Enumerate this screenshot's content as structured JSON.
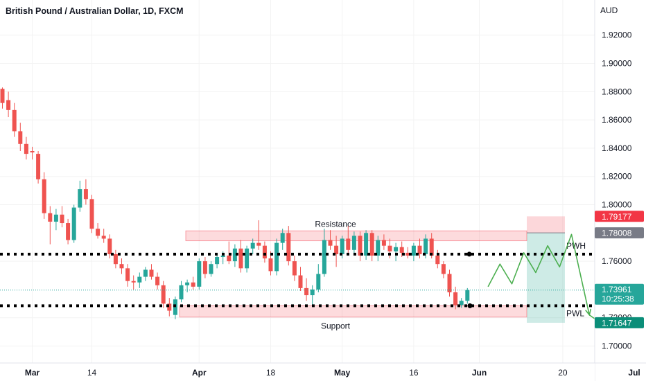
{
  "header": {
    "title": "British Pound / Australian Dollar, 1D, FXCM",
    "currency": "AUD"
  },
  "chart_data": {
    "type": "candlestick",
    "y_range": [
      1.688,
      1.938
    ],
    "y_ticks": [
      {
        "value": 1.92,
        "label": "1.92000"
      },
      {
        "value": 1.9,
        "label": "1.90000"
      },
      {
        "value": 1.88,
        "label": "1.88000"
      },
      {
        "value": 1.86,
        "label": "1.86000"
      },
      {
        "value": 1.84,
        "label": "1.84000"
      },
      {
        "value": 1.82,
        "label": "1.82000"
      },
      {
        "value": 1.8,
        "label": "1.80000"
      },
      {
        "value": 1.76,
        "label": "1.76000"
      },
      {
        "value": 1.72,
        "label": "1.72000"
      },
      {
        "value": 1.7,
        "label": "1.70000"
      }
    ],
    "x_ticks": [
      {
        "index": 5,
        "label": "Mar",
        "bold": true
      },
      {
        "index": 15,
        "label": "14",
        "bold": false
      },
      {
        "index": 33,
        "label": "Apr",
        "bold": true
      },
      {
        "index": 45,
        "label": "18",
        "bold": false
      },
      {
        "index": 57,
        "label": "May",
        "bold": true
      },
      {
        "index": 69,
        "label": "16",
        "bold": false
      },
      {
        "index": 80,
        "label": "Jun",
        "bold": true
      },
      {
        "index": 94,
        "label": "20",
        "bold": false
      },
      {
        "index": 106,
        "label": "Jul",
        "bold": true
      }
    ],
    "candles": [
      [
        1.882,
        1.883,
        1.868,
        1.872
      ],
      [
        1.874,
        1.88,
        1.862,
        1.867
      ],
      [
        1.867,
        1.872,
        1.848,
        1.852
      ],
      [
        1.852,
        1.858,
        1.838,
        1.843
      ],
      [
        1.843,
        1.848,
        1.832,
        1.836
      ],
      [
        1.838,
        1.841,
        1.832,
        1.837
      ],
      [
        1.836,
        1.838,
        1.815,
        1.818
      ],
      [
        1.818,
        1.823,
        1.79,
        1.794
      ],
      [
        1.794,
        1.799,
        1.772,
        1.788
      ],
      [
        1.788,
        1.797,
        1.782,
        1.793
      ],
      [
        1.793,
        1.799,
        1.784,
        1.787
      ],
      [
        1.787,
        1.79,
        1.772,
        1.775
      ],
      [
        1.775,
        1.8,
        1.773,
        1.798
      ],
      [
        1.798,
        1.817,
        1.795,
        1.811
      ],
      [
        1.811,
        1.818,
        1.8,
        1.804
      ],
      [
        1.804,
        1.807,
        1.78,
        1.783
      ],
      [
        1.783,
        1.787,
        1.776,
        1.778
      ],
      [
        1.778,
        1.783,
        1.773,
        1.776
      ],
      [
        1.776,
        1.779,
        1.762,
        1.765
      ],
      [
        1.765,
        1.768,
        1.755,
        1.758
      ],
      [
        1.758,
        1.762,
        1.751,
        1.755
      ],
      [
        1.755,
        1.758,
        1.742,
        1.746
      ],
      [
        1.746,
        1.75,
        1.74,
        1.745
      ],
      [
        1.745,
        1.752,
        1.741,
        1.749
      ],
      [
        1.749,
        1.756,
        1.746,
        1.754
      ],
      [
        1.754,
        1.758,
        1.747,
        1.749
      ],
      [
        1.749,
        1.752,
        1.74,
        1.743
      ],
      [
        1.743,
        1.746,
        1.727,
        1.73
      ],
      [
        1.73,
        1.734,
        1.721,
        1.725
      ],
      [
        1.722,
        1.735,
        1.719,
        1.733
      ],
      [
        1.733,
        1.746,
        1.731,
        1.743
      ],
      [
        1.743,
        1.747,
        1.738,
        1.745
      ],
      [
        1.745,
        1.749,
        1.74,
        1.742
      ],
      [
        1.742,
        1.762,
        1.74,
        1.76
      ],
      [
        1.76,
        1.763,
        1.748,
        1.751
      ],
      [
        1.751,
        1.76,
        1.749,
        1.758
      ],
      [
        1.758,
        1.765,
        1.755,
        1.763
      ],
      [
        1.763,
        1.767,
        1.758,
        1.764
      ],
      [
        1.764,
        1.774,
        1.758,
        1.76
      ],
      [
        1.76,
        1.772,
        1.756,
        1.769
      ],
      [
        1.769,
        1.775,
        1.752,
        1.755
      ],
      [
        1.755,
        1.771,
        1.752,
        1.769
      ],
      [
        1.769,
        1.776,
        1.765,
        1.773
      ],
      [
        1.773,
        1.789,
        1.768,
        1.771
      ],
      [
        1.771,
        1.774,
        1.759,
        1.762
      ],
      [
        1.762,
        1.767,
        1.75,
        1.753
      ],
      [
        1.753,
        1.776,
        1.75,
        1.773
      ],
      [
        1.773,
        1.783,
        1.768,
        1.78
      ],
      [
        1.78,
        1.785,
        1.757,
        1.76
      ],
      [
        1.76,
        1.764,
        1.746,
        1.75
      ],
      [
        1.75,
        1.756,
        1.739,
        1.741
      ],
      [
        1.741,
        1.748,
        1.732,
        1.736
      ],
      [
        1.736,
        1.743,
        1.729,
        1.74
      ],
      [
        1.74,
        1.758,
        1.738,
        1.751
      ],
      [
        1.751,
        1.783,
        1.749,
        1.775
      ],
      [
        1.775,
        1.782,
        1.768,
        1.771
      ],
      [
        1.771,
        1.778,
        1.756,
        1.765
      ],
      [
        1.765,
        1.778,
        1.762,
        1.776
      ],
      [
        1.776,
        1.785,
        1.766,
        1.768
      ],
      [
        1.768,
        1.781,
        1.765,
        1.778
      ],
      [
        1.778,
        1.781,
        1.76,
        1.764
      ],
      [
        1.764,
        1.782,
        1.761,
        1.78
      ],
      [
        1.78,
        1.782,
        1.76,
        1.764
      ],
      [
        1.764,
        1.778,
        1.76,
        1.775
      ],
      [
        1.775,
        1.779,
        1.768,
        1.771
      ],
      [
        1.771,
        1.776,
        1.762,
        1.767
      ],
      [
        1.767,
        1.773,
        1.76,
        1.77
      ],
      [
        1.77,
        1.774,
        1.763,
        1.766
      ],
      [
        1.766,
        1.77,
        1.762,
        1.764
      ],
      [
        1.764,
        1.773,
        1.76,
        1.771
      ],
      [
        1.771,
        1.776,
        1.762,
        1.765
      ],
      [
        1.765,
        1.779,
        1.762,
        1.776
      ],
      [
        1.776,
        1.78,
        1.762,
        1.764
      ],
      [
        1.764,
        1.768,
        1.755,
        1.758
      ],
      [
        1.758,
        1.76,
        1.748,
        1.751
      ],
      [
        1.751,
        1.754,
        1.735,
        1.738
      ],
      [
        1.738,
        1.742,
        1.726,
        1.729
      ],
      [
        1.729,
        1.734,
        1.727,
        1.732
      ],
      [
        1.732,
        1.741,
        1.73,
        1.7396
      ]
    ],
    "levels": [
      {
        "name": "PWH",
        "value": 1.765
      },
      {
        "name": "PWL",
        "value": 1.7285
      }
    ],
    "zones": [
      {
        "label": "Resistance",
        "top": 1.7815,
        "bottom": 1.7745
      },
      {
        "label": "Support",
        "top": 1.7285,
        "bottom": 1.7205
      }
    ],
    "current_price": 1.73961,
    "countdown": "10:25:38",
    "price_tags": [
      {
        "label": "1.79177",
        "value": 1.79177,
        "color": "#f23645"
      },
      {
        "label": "1.78008",
        "value": 1.78008,
        "color": "#787b86"
      },
      {
        "label": "1.73961",
        "value": 1.73961,
        "color": "#26a69a"
      },
      {
        "label": "1.71647",
        "value": 1.71647,
        "color": "#0b8e79"
      }
    ],
    "position": {
      "stop": 1.79177,
      "entry": 1.78008,
      "target": 1.71647
    },
    "projection": [
      [
        81,
        1.742
      ],
      [
        83,
        1.758
      ],
      [
        85,
        1.744
      ],
      [
        87,
        1.766
      ],
      [
        89,
        1.752
      ],
      [
        91,
        1.771
      ],
      [
        93,
        1.756
      ],
      [
        95,
        1.779
      ],
      [
        98,
        1.722
      ],
      [
        100,
        1.716
      ]
    ],
    "colors": {
      "up": "#26a69a",
      "down": "#ef5350",
      "projection": "#4caf50"
    }
  }
}
